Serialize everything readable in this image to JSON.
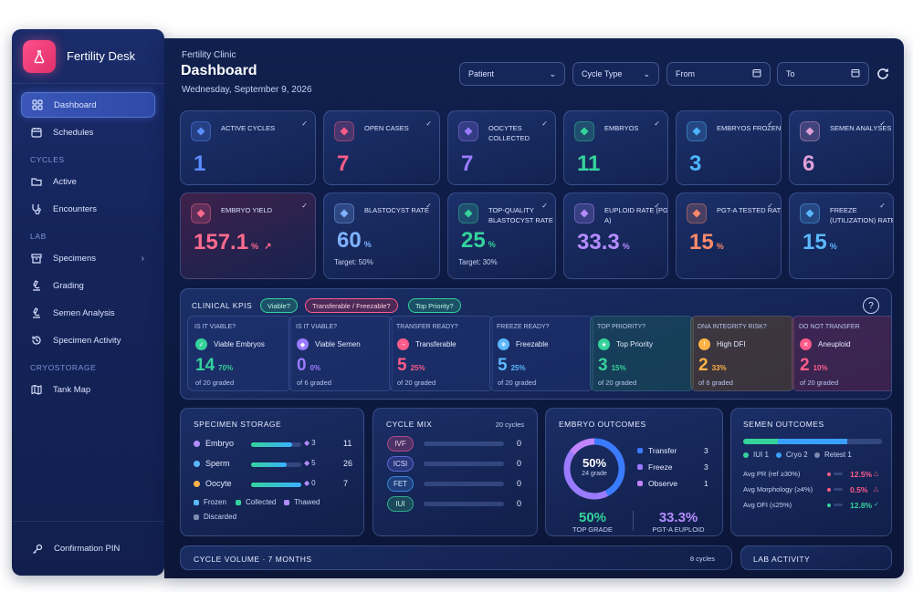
{
  "app": {
    "name": "Fertility Desk"
  },
  "sidebar": {
    "items": [
      {
        "label": "Dashboard",
        "icon": "grid-icon"
      },
      {
        "label": "Schedules",
        "icon": "calendar-icon"
      }
    ],
    "sections": {
      "cycles": "CYCLES",
      "lab": "LAB",
      "cryo": "CRYOSTORAGE"
    },
    "cycles_items": [
      {
        "label": "Active"
      },
      {
        "label": "Encounters"
      }
    ],
    "lab_items": [
      {
        "label": "Specimens"
      },
      {
        "label": "Grading"
      },
      {
        "label": "Semen Analysis"
      },
      {
        "label": "Specimen Activity"
      }
    ],
    "cryo_items": [
      {
        "label": "Tank Map"
      }
    ],
    "footer": "Confirmation PIN"
  },
  "header": {
    "subtitle": "Fertility Clinic",
    "title": "Dashboard",
    "date": "Wednesday, September 9, 2026"
  },
  "filters": {
    "patient": "Patient",
    "cycle_type": "Cycle Type",
    "from": "From",
    "to": "To"
  },
  "kpis_row1": [
    {
      "label": "ACTIVE CYCLES",
      "value": "1",
      "color": "#5b8cff"
    },
    {
      "label": "OPEN CASES",
      "value": "7",
      "color": "#ff5c8a"
    },
    {
      "label": "OOCYTES COLLECTED",
      "value": "7",
      "color": "#9a7bff"
    },
    {
      "label": "EMBRYOS",
      "value": "11",
      "color": "#35d39b"
    },
    {
      "label": "EMBRYOS FROZEN",
      "value": "3",
      "color": "#4fb6ff"
    },
    {
      "label": "SEMEN ANALYSES",
      "value": "6",
      "color": "#e0a0d8"
    }
  ],
  "kpis_row2": [
    {
      "label": "EMBRYO YIELD",
      "value": "157.1",
      "unit": "%",
      "color": "#ff6b8f"
    },
    {
      "label": "BLASTOCYST RATE",
      "value": "60",
      "unit": "%",
      "target": "Target: 50%",
      "color": "#7fb2ff"
    },
    {
      "label": "TOP-QUALITY BLASTOCYST RATE",
      "value": "25",
      "unit": "%",
      "target": "Target: 30%",
      "color": "#35d39b"
    },
    {
      "label": "EUPLOID RATE (PGT-A)",
      "value": "33.3",
      "unit": "%",
      "color": "#b48cff"
    },
    {
      "label": "PGT-A TESTED RATE",
      "value": "15",
      "unit": "%",
      "color": "#ff8a6b"
    },
    {
      "label": "FREEZE (UTILIZATION) RATE",
      "value": "15",
      "unit": "%",
      "color": "#5bb8ff"
    }
  ],
  "clinical": {
    "title": "CLINICAL KPIS",
    "pills": [
      "Viable?",
      "Transferable / Freezable?",
      "Top Priority?"
    ],
    "cards": [
      {
        "q": "IS IT VIABLE?",
        "name": "Viable Embryos",
        "num": "14",
        "pct": "70%",
        "of": "of 20 graded",
        "color": "#35d39b"
      },
      {
        "q": "IS IT VIABLE?",
        "name": "Viable Semen",
        "num": "0",
        "pct": "0%",
        "of": "of 6 graded",
        "color": "#9a7bff"
      },
      {
        "q": "TRANSFER READY?",
        "name": "Transferable",
        "num": "5",
        "pct": "25%",
        "of": "of 20 graded",
        "color": "#ff5c8a"
      },
      {
        "q": "FREEZE READY?",
        "name": "Freezable",
        "num": "5",
        "pct": "25%",
        "of": "of 20 graded",
        "color": "#5bb8ff"
      },
      {
        "q": "TOP PRIORITY?",
        "name": "Top Priority",
        "num": "3",
        "pct": "15%",
        "of": "of 20 graded",
        "color": "#35d39b"
      },
      {
        "q": "DNA INTEGRITY RISK?",
        "name": "High DFI",
        "num": "2",
        "pct": "33%",
        "of": "of 6 graded",
        "color": "#ffb347"
      },
      {
        "q": "DO NOT TRANSFER",
        "name": "Aneuploid",
        "num": "2",
        "pct": "10%",
        "of": "of 20 graded",
        "color": "#ff5c8a"
      }
    ]
  },
  "storage": {
    "title": "SPECIMEN STORAGE",
    "rows": [
      {
        "label": "Embryo",
        "badge": "3",
        "total": "11",
        "fill": 0.82,
        "color": "#b48cff"
      },
      {
        "label": "Sperm",
        "badge": "5",
        "total": "26",
        "fill": 0.7,
        "color": "#5bb8ff"
      },
      {
        "label": "Oocyte",
        "badge": "0",
        "total": "7",
        "fill": 1.0,
        "color": "#ffb347"
      }
    ],
    "legend": [
      "Frozen",
      "Collected",
      "Thawed",
      "Discarded"
    ]
  },
  "cycle_mix": {
    "title": "CYCLE MIX",
    "count": "20 cycles",
    "rows": [
      {
        "tag": "IVF",
        "value": "0"
      },
      {
        "tag": "ICSI",
        "value": "0"
      },
      {
        "tag": "FET",
        "value": "0"
      },
      {
        "tag": "IUI",
        "value": "0"
      }
    ]
  },
  "embryo_outcomes": {
    "title": "EMBRYO OUTCOMES",
    "donut_pct": "50%",
    "donut_sub": "24 grade",
    "legend": [
      {
        "label": "Transfer",
        "value": "3"
      },
      {
        "label": "Freeze",
        "value": "3"
      },
      {
        "label": "Observe",
        "value": "1"
      }
    ],
    "top_grade": "50%",
    "top_grade_label": "TOP GRADE",
    "euploid": "33.3%",
    "euploid_label": "PGT-A EUPLOID"
  },
  "semen_outcomes": {
    "title": "SEMEN OUTCOMES",
    "legend": [
      "IUI 1",
      "Cryo 2",
      "Retest 1"
    ],
    "rows": [
      {
        "label": "Avg PR (ref ≥30%)",
        "value": "12.5%",
        "color": "#ff5c8a"
      },
      {
        "label": "Avg Morphology (≥4%)",
        "value": "0.5%",
        "color": "#ff5c8a"
      },
      {
        "label": "Avg DFI (≤25%)",
        "value": "12.8%",
        "color": "#35d39b"
      }
    ]
  },
  "cycle_volume": {
    "title": "CYCLE VOLUME · 7 MONTHS",
    "count": "8 cycles"
  },
  "lab_activity": {
    "title": "LAB ACTIVITY"
  }
}
